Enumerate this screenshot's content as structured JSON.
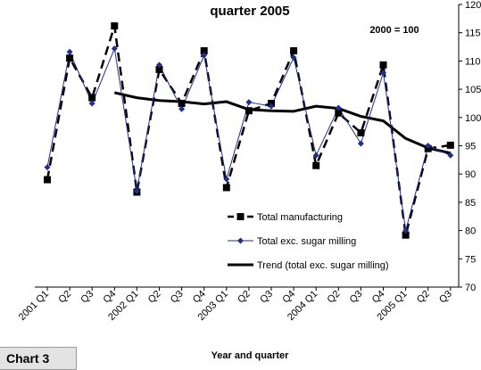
{
  "chart_data": {
    "type": "line",
    "title": "quarter 2005",
    "base_note": "2000 = 100",
    "xlabel": "Year and quarter",
    "ylabel": "",
    "ylim": [
      70,
      120
    ],
    "y_ticks": [
      "70",
      "75",
      "80",
      "85",
      "90",
      "95",
      "100",
      "105",
      "110",
      "115",
      "120"
    ],
    "x_tick_labels": [
      "2001 Q1",
      "Q2",
      "Q3",
      "Q4",
      "2002 Q1",
      "Q2",
      "Q3",
      "Q4",
      "2003 Q1",
      "Q2",
      "Q3",
      "Q4",
      "2004 Q1",
      "Q2",
      "Q3",
      "Q4",
      "2005 Q1",
      "Q2",
      "Q3"
    ],
    "grid": false,
    "legend_position": "lower-right",
    "series": [
      {
        "name": "Total manufacturing",
        "style": "dashed-square",
        "color": "#000000",
        "values": [
          89.0,
          110.5,
          103.5,
          116.2,
          86.8,
          108.5,
          102.5,
          111.8,
          87.6,
          101.2,
          102.5,
          111.8,
          91.5,
          100.8,
          97.3,
          109.3,
          79.2,
          94.5,
          95.1
        ]
      },
      {
        "name": "Total exc. sugar milling",
        "style": "line-diamond",
        "color": "#1f2f8f",
        "values": [
          91.2,
          111.6,
          102.5,
          112.2,
          87.0,
          109.3,
          101.5,
          111.0,
          89.1,
          102.7,
          102.0,
          110.6,
          93.3,
          101.7,
          95.4,
          107.9,
          80.0,
          95.0,
          93.3
        ]
      },
      {
        "name": "Trend (total exc. sugar milling)",
        "style": "solid-thick",
        "color": "#000000",
        "x_start_index": 3,
        "values": [
          104.4,
          103.5,
          103.0,
          102.8,
          102.4,
          102.8,
          101.4,
          101.2,
          101.1,
          102.0,
          101.6,
          100.2,
          99.4,
          96.3,
          94.6,
          93.7
        ]
      }
    ]
  },
  "chart_label": "Chart 3"
}
